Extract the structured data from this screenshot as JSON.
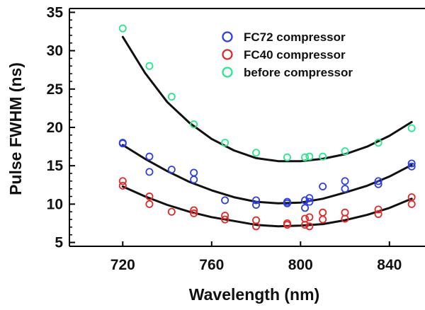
{
  "chart_data": {
    "type": "scatter",
    "xlabel": "Wavelength (nm)",
    "ylabel": "Pulse FWHM (ns)",
    "xlim": [
      696,
      856
    ],
    "ylim": [
      4.5,
      35.5
    ],
    "xticks": [
      720,
      760,
      800,
      840
    ],
    "yticks": [
      5,
      10,
      15,
      20,
      25,
      30,
      35
    ],
    "grid": false,
    "legend_position": "top-right",
    "series": [
      {
        "name": "FC72 compressor",
        "color": "#2f3fe0",
        "x": [
          720,
          720,
          732,
          732,
          742,
          752,
          752,
          766,
          780,
          780,
          794,
          794,
          802,
          802,
          804,
          804,
          810,
          820,
          820,
          835,
          835,
          850,
          850
        ],
        "y": [
          18.0,
          17.9,
          16.2,
          14.2,
          14.5,
          14.1,
          13.2,
          10.5,
          10.5,
          9.9,
          10.3,
          10.1,
          10.5,
          9.5,
          10.8,
          10.3,
          12.3,
          13.0,
          12.0,
          13.0,
          12.6,
          15.3,
          14.9
        ]
      },
      {
        "name": "FC40 compressor",
        "color": "#e02a2a",
        "x": [
          720,
          720,
          732,
          732,
          742,
          752,
          752,
          766,
          766,
          780,
          780,
          794,
          794,
          802,
          802,
          804,
          804,
          810,
          810,
          820,
          820,
          835,
          835,
          850,
          850
        ],
        "y": [
          13.0,
          12.4,
          11.0,
          10.0,
          9.0,
          9.2,
          8.8,
          8.5,
          8.0,
          7.9,
          7.1,
          7.5,
          7.3,
          8.1,
          7.3,
          8.3,
          7.1,
          8.9,
          8.0,
          8.9,
          8.1,
          9.3,
          8.7,
          10.9,
          10.0
        ]
      },
      {
        "name": "before compressor",
        "color": "#2de58e",
        "x": [
          720,
          732,
          742,
          752,
          766,
          780,
          794,
          802,
          804,
          810,
          820,
          835,
          850
        ],
        "y": [
          32.9,
          28.0,
          24.0,
          20.4,
          18.0,
          16.7,
          16.1,
          16.1,
          16.2,
          16.2,
          16.9,
          18.0,
          19.9
        ]
      }
    ],
    "fit_curves": [
      {
        "x": [
          720,
          730,
          740,
          750,
          760,
          770,
          780,
          790,
          800,
          810,
          820,
          830,
          840,
          850
        ],
        "y": [
          31.8,
          27.1,
          23.3,
          20.6,
          18.5,
          17.0,
          16.0,
          15.6,
          15.6,
          15.9,
          16.5,
          17.5,
          18.9,
          20.7
        ]
      },
      {
        "x": [
          720,
          730,
          740,
          750,
          760,
          770,
          780,
          790,
          800,
          810,
          820,
          830,
          840,
          850
        ],
        "y": [
          17.7,
          15.9,
          14.3,
          12.9,
          11.8,
          10.9,
          10.3,
          10.1,
          10.2,
          10.7,
          11.5,
          12.4,
          13.6,
          15.1
        ]
      },
      {
        "x": [
          720,
          730,
          740,
          750,
          760,
          770,
          780,
          790,
          800,
          810,
          820,
          830,
          840,
          850
        ],
        "y": [
          12.3,
          11.0,
          9.9,
          9.0,
          8.3,
          7.8,
          7.3,
          7.1,
          7.2,
          7.4,
          7.9,
          8.6,
          9.5,
          10.7
        ]
      }
    ]
  }
}
